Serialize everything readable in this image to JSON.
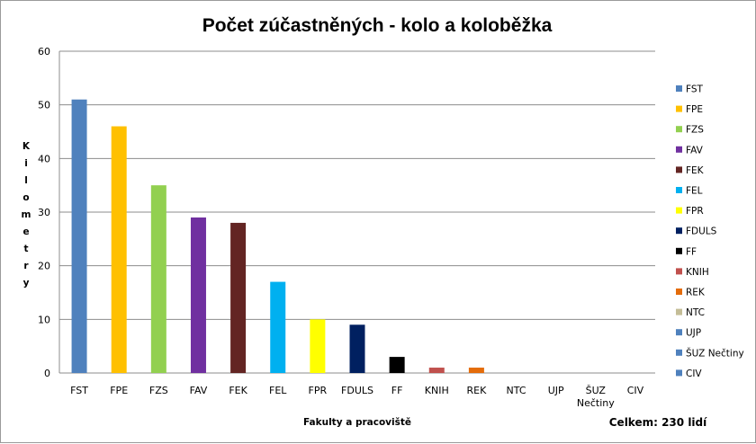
{
  "chart_data": {
    "type": "bar",
    "title": "Počet zúčastněných - kolo a koloběžka",
    "xlabel": "Fakulty a pracoviště",
    "ylabel": "Kilometry",
    "ylim": [
      0,
      60
    ],
    "yticks": [
      0,
      10,
      20,
      30,
      40,
      50,
      60
    ],
    "grid": true,
    "legend_position": "right",
    "note": "Celkem: 230 lidí",
    "categories": [
      "FST",
      "FPE",
      "FZS",
      "FAV",
      "FEK",
      "FEL",
      "FPR",
      "FDULS",
      "FF",
      "KNIH",
      "REK",
      "NTC",
      "UJP",
      "ŠUZ Nečtiny",
      "CIV"
    ],
    "category_labels": [
      [
        "FST"
      ],
      [
        "FPE"
      ],
      [
        "FZS"
      ],
      [
        "FAV"
      ],
      [
        "FEK"
      ],
      [
        "FEL"
      ],
      [
        "FPR"
      ],
      [
        "FDULS"
      ],
      [
        "FF"
      ],
      [
        "KNIH"
      ],
      [
        "REK"
      ],
      [
        "NTC"
      ],
      [
        "UJP"
      ],
      [
        "ŠUZ",
        "Nečtiny"
      ],
      [
        "CIV"
      ]
    ],
    "values": [
      51,
      46,
      35,
      29,
      28,
      17,
      10,
      9,
      3,
      1,
      1,
      0,
      0,
      0,
      0
    ],
    "colors": [
      "#4f81bd",
      "#ffc000",
      "#92d050",
      "#7030a0",
      "#632523",
      "#00b0f0",
      "#ffff00",
      "#002060",
      "#000000",
      "#c0504d",
      "#e46c0a",
      "#c4bd97",
      "#4f81bd",
      "#4f81bd",
      "#4f81bd"
    ]
  }
}
